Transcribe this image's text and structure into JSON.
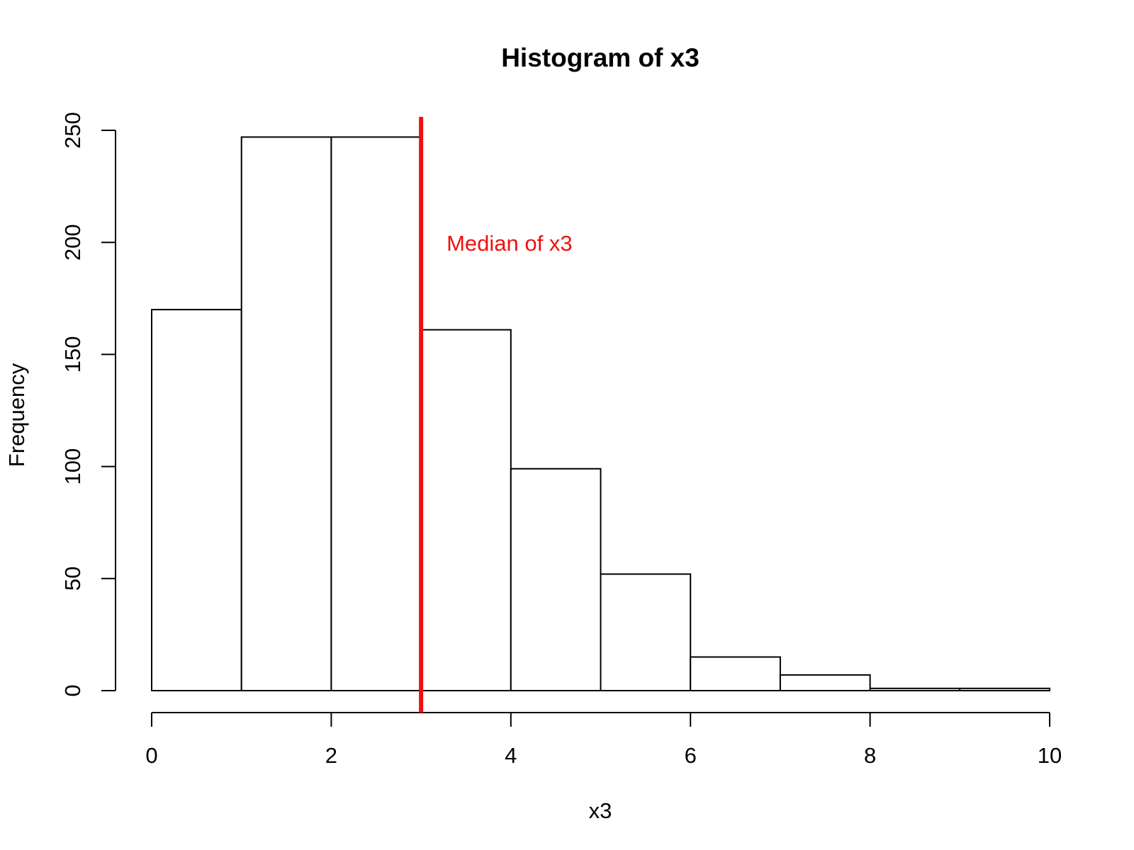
{
  "chart_data": {
    "type": "histogram",
    "title": "Histogram of x3",
    "xlabel": "x3",
    "ylabel": "Frequency",
    "bins": [
      0,
      1,
      2,
      3,
      4,
      5,
      6,
      7,
      8,
      9,
      10
    ],
    "values": [
      170,
      247,
      247,
      161,
      99,
      52,
      15,
      7,
      1,
      1
    ],
    "color": "#ffffff",
    "edge_color": "#000000",
    "xlim": [
      0,
      10
    ],
    "xticks": [
      0,
      2,
      4,
      6,
      8,
      10
    ],
    "ylim": [
      0,
      250
    ],
    "yticks": [
      0,
      50,
      100,
      150,
      200,
      250
    ],
    "median_line": {
      "x": 3,
      "label": "Median of x3",
      "color": "#ee1111"
    }
  }
}
